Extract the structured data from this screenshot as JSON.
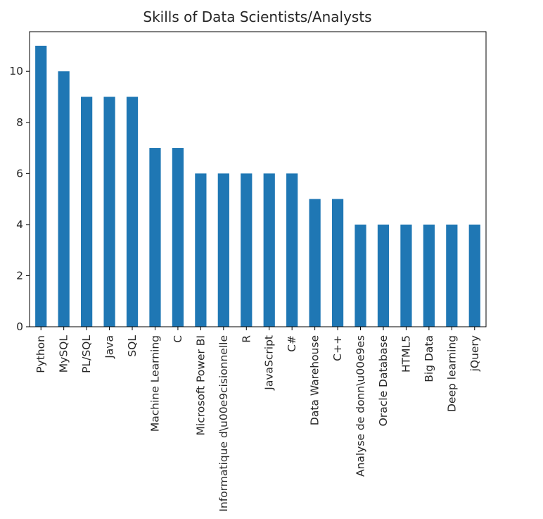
{
  "chart_data": {
    "type": "bar",
    "title": "Skills of Data Scientists/Analysts",
    "xlabel": "",
    "ylabel": "",
    "categories": [
      "Python",
      "MySQL",
      "PL/SQL",
      "Java",
      "SQL",
      "Machine Learning",
      "C",
      "Microsoft Power BI",
      "Informatique d\\u00e9cisionnelle",
      "R",
      "JavaScript",
      "C#",
      "Data Warehouse",
      "C++",
      "Analyse de donn\\u00e9es",
      "Oracle Database",
      "HTML5",
      "Big Data",
      "Deep learning",
      "jQuery"
    ],
    "values": [
      11,
      10,
      9,
      9,
      9,
      7,
      7,
      6,
      6,
      6,
      6,
      6,
      5,
      5,
      4,
      4,
      4,
      4,
      4,
      4
    ],
    "ylim": [
      0,
      11.55
    ],
    "yticks": [
      0,
      2,
      4,
      6,
      8,
      10
    ],
    "bar_color": "#1f77b4",
    "grid": false,
    "legend": "none"
  }
}
